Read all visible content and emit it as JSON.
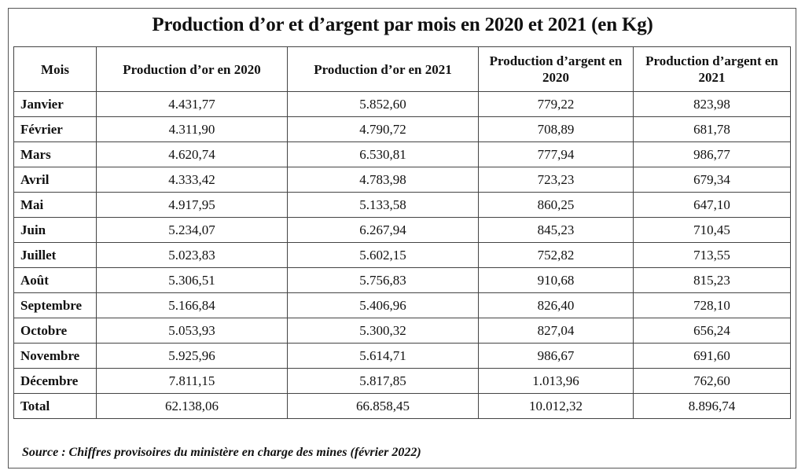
{
  "title": "Production d’or et d’argent par mois en 2020 et 2021 (en Kg)",
  "headers": [
    "Mois",
    "Production d’or en 2020",
    "Production d’or en 2021",
    "Production d’argent en 2020",
    "Production d’argent en 2021"
  ],
  "rows": [
    [
      "Janvier",
      "4.431,77",
      "5.852,60",
      "779,22",
      "823,98"
    ],
    [
      "Février",
      "4.311,90",
      "4.790,72",
      "708,89",
      "681,78"
    ],
    [
      "Mars",
      "4.620,74",
      "6.530,81",
      "777,94",
      "986,77"
    ],
    [
      "Avril",
      "4.333,42",
      "4.783,98",
      "723,23",
      "679,34"
    ],
    [
      "Mai",
      "4.917,95",
      "5.133,58",
      "860,25",
      "647,10"
    ],
    [
      "Juin",
      "5.234,07",
      "6.267,94",
      "845,23",
      "710,45"
    ],
    [
      "Juillet",
      "5.023,83",
      "5.602,15",
      "752,82",
      "713,55"
    ],
    [
      "Août",
      "5.306,51",
      "5.756,83",
      "910,68",
      "815,23"
    ],
    [
      "Septembre",
      "5.166,84",
      "5.406,96",
      "826,40",
      "728,10"
    ],
    [
      "Octobre",
      "5.053,93",
      "5.300,32",
      "827,04",
      "656,24"
    ],
    [
      "Novembre",
      "5.925,96",
      "5.614,71",
      "986,67",
      "691,60"
    ],
    [
      "Décembre",
      "7.811,15",
      "5.817,85",
      "1.013,96",
      "762,60"
    ],
    [
      "Total",
      "62.138,06",
      "66.858,45",
      "10.012,32",
      "8.896,74"
    ]
  ],
  "source": "Source : Chiffres provisoires du ministère en charge des mines (février 2022)"
}
